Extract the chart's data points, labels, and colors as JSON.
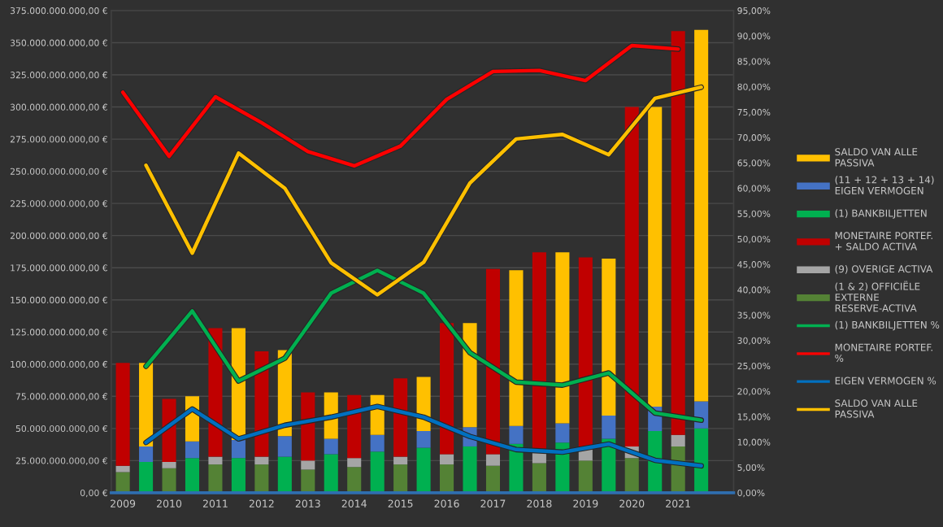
{
  "chart_data": {
    "type": "bar",
    "grid": "y",
    "legend": "right",
    "xlim": [
      2008.75,
      2022.2
    ],
    "xticks": [
      {
        "value": 2009,
        "label": "2009"
      },
      {
        "value": 2010,
        "label": "2010"
      },
      {
        "value": 2011,
        "label": "2011"
      },
      {
        "value": 2012,
        "label": "2012"
      },
      {
        "value": 2013,
        "label": "2013"
      },
      {
        "value": 2014,
        "label": "2014"
      },
      {
        "value": 2015,
        "label": "2015"
      },
      {
        "value": 2016,
        "label": "2016"
      },
      {
        "value": 2017,
        "label": "2017"
      },
      {
        "value": 2018,
        "label": "2018"
      },
      {
        "value": 2019,
        "label": "2019"
      },
      {
        "value": 2020,
        "label": "2020"
      },
      {
        "value": 2021,
        "label": "2021"
      }
    ],
    "ylim": [
      0,
      375000000000
    ],
    "yticks": [
      {
        "value": 0,
        "label": "0,00 €"
      },
      {
        "value": 25000000000,
        "label": "25.000.000.000,00 €"
      },
      {
        "value": 50000000000,
        "label": "50.000.000.000,00 €"
      },
      {
        "value": 75000000000,
        "label": "75.000.000.000,00 €"
      },
      {
        "value": 100000000000,
        "label": "100.000.000.000,00 €"
      },
      {
        "value": 125000000000,
        "label": "125.000.000.000,00 €"
      },
      {
        "value": 150000000000,
        "label": "150.000.000.000,00 €"
      },
      {
        "value": 175000000000,
        "label": "175.000.000.000,00 €"
      },
      {
        "value": 200000000000,
        "label": "200.000.000.000,00 €"
      },
      {
        "value": 225000000000,
        "label": "225.000.000.000,00 €"
      },
      {
        "value": 250000000000,
        "label": "250.000.000.000,00 €"
      },
      {
        "value": 275000000000,
        "label": "275.000.000.000,00 €"
      },
      {
        "value": 300000000000,
        "label": "300.000.000.000,00 €"
      },
      {
        "value": 325000000000,
        "label": "325.000.000.000,00 €"
      },
      {
        "value": 350000000000,
        "label": "350.000.000.000,00 €"
      },
      {
        "value": 375000000000,
        "label": "375.000.000.000,00 €"
      }
    ],
    "y2lim": [
      0,
      95
    ],
    "y2ticks": [
      {
        "value": 0,
        "label": "0,00%"
      },
      {
        "value": 5,
        "label": "5,00%"
      },
      {
        "value": 10,
        "label": "10,00%"
      },
      {
        "value": 15,
        "label": "15,00%"
      },
      {
        "value": 20,
        "label": "20,00%"
      },
      {
        "value": 25,
        "label": "25,00%"
      },
      {
        "value": 30,
        "label": "30,00%"
      },
      {
        "value": 35,
        "label": "35,00%"
      },
      {
        "value": 40,
        "label": "40,00%"
      },
      {
        "value": 45,
        "label": "45,00%"
      },
      {
        "value": 50,
        "label": "50,00%"
      },
      {
        "value": 55,
        "label": "55,00%"
      },
      {
        "value": 60,
        "label": "60,00%"
      },
      {
        "value": 65,
        "label": "65,00%"
      },
      {
        "value": 70,
        "label": "70,00%"
      },
      {
        "value": 75,
        "label": "75,00%"
      },
      {
        "value": 80,
        "label": "80,00%"
      },
      {
        "value": 85,
        "label": "85,00%"
      },
      {
        "value": 90,
        "label": "90,00%"
      },
      {
        "value": 95,
        "label": "95,00%"
      }
    ],
    "series": [
      {
        "name": "(1 & 2) OFFICIËLE EXTERNE RESERVE-ACTIVA",
        "color": "#548235",
        "x": [
          2009,
          2010,
          2011,
          2012,
          2013,
          2014,
          2015,
          2016,
          2017,
          2018,
          2019,
          2020,
          2021
        ],
        "base": [
          0,
          0,
          0,
          0,
          0,
          0,
          0,
          0,
          0,
          0,
          0,
          0,
          0
        ],
        "values": [
          16000000000,
          19000000000,
          22000000000,
          22000000000,
          18000000000,
          20000000000,
          22000000000,
          22000000000,
          21000000000,
          23000000000,
          25000000000,
          27000000000,
          36000000000
        ]
      },
      {
        "name": "(9) OVERIGE ACTIVA",
        "color": "#a5a5a5",
        "x": [
          2009,
          2010,
          2011,
          2012,
          2013,
          2014,
          2015,
          2016,
          2017,
          2018,
          2019,
          2020,
          2021
        ],
        "base": [
          16000000000,
          19000000000,
          22000000000,
          22000000000,
          18000000000,
          20000000000,
          22000000000,
          22000000000,
          21000000000,
          23000000000,
          25000000000,
          27000000000,
          36000000000
        ],
        "values": [
          5000000000,
          5000000000,
          6000000000,
          6000000000,
          7000000000,
          7000000000,
          6000000000,
          8000000000,
          9000000000,
          8000000000,
          9000000000,
          9000000000,
          9000000000
        ]
      },
      {
        "name": "MONETAIRE PORTEF. + SALDO ACTIVA",
        "color": "#c00000",
        "x": [
          2009,
          2010,
          2011,
          2012,
          2013,
          2014,
          2015,
          2016,
          2017,
          2018,
          2019,
          2020,
          2021
        ],
        "base": [
          21000000000,
          24000000000,
          28000000000,
          28000000000,
          25000000000,
          27000000000,
          28000000000,
          30000000000,
          30000000000,
          31000000000,
          34000000000,
          36000000000,
          45000000000
        ],
        "values": [
          80000000000,
          49000000000,
          100000000000,
          82000000000,
          53000000000,
          49000000000,
          61000000000,
          102000000000,
          144000000000,
          156000000000,
          149000000000,
          264000000000,
          314000000000
        ]
      },
      {
        "name": "(1) BANKBILJETTEN",
        "color": "#00b050",
        "x": [
          2009.5,
          2010.5,
          2011.5,
          2012.5,
          2013.5,
          2014.5,
          2015.5,
          2016.5,
          2017.5,
          2018.5,
          2019.5,
          2020.5,
          2021.5
        ],
        "base": [
          0,
          0,
          0,
          0,
          0,
          0,
          0,
          0,
          0,
          0,
          0,
          0,
          0
        ],
        "values": [
          24000000000,
          27000000000,
          27000000000,
          28000000000,
          30000000000,
          32000000000,
          35000000000,
          36000000000,
          38000000000,
          39000000000,
          42000000000,
          48000000000,
          50000000000
        ]
      },
      {
        "name": "(11 + 12 + 13 + 14) EIGEN VERMOGEN",
        "color": "#4472c4",
        "x": [
          2009.5,
          2010.5,
          2011.5,
          2012.5,
          2013.5,
          2014.5,
          2015.5,
          2016.5,
          2017.5,
          2018.5,
          2019.5,
          2020.5,
          2021.5
        ],
        "base": [
          24000000000,
          27000000000,
          27000000000,
          28000000000,
          30000000000,
          32000000000,
          35000000000,
          36000000000,
          38000000000,
          39000000000,
          42000000000,
          48000000000,
          50000000000
        ],
        "values": [
          12000000000,
          13000000000,
          14000000000,
          16000000000,
          12000000000,
          13000000000,
          13000000000,
          15000000000,
          14000000000,
          15000000000,
          18000000000,
          19000000000,
          21000000000
        ]
      },
      {
        "name": "SALDO VAN ALLE PASSIVA",
        "color": "#ffc000",
        "x": [
          2009.5,
          2010.5,
          2011.5,
          2012.5,
          2013.5,
          2014.5,
          2015.5,
          2016.5,
          2017.5,
          2018.5,
          2019.5,
          2020.5,
          2021.5
        ],
        "base": [
          36000000000,
          40000000000,
          41000000000,
          44000000000,
          42000000000,
          45000000000,
          48000000000,
          51000000000,
          52000000000,
          54000000000,
          60000000000,
          67000000000,
          71000000000
        ],
        "values": [
          65000000000,
          35000000000,
          87000000000,
          67000000000,
          36000000000,
          31000000000,
          42000000000,
          81000000000,
          121000000000,
          133000000000,
          122000000000,
          233000000000,
          289000000000
        ]
      },
      {
        "name": "(1) BANKBILJETTEN %",
        "type": "line",
        "axis": "y2",
        "color": "#00b050",
        "x": [
          2009.5,
          2010.5,
          2011.5,
          2012.5,
          2013.5,
          2014.5,
          2015.5,
          2016.5,
          2017.5,
          2018.5,
          2019.5,
          2020.5,
          2021.5
        ],
        "values": [
          24.9,
          35.8,
          22,
          26.5,
          39.3,
          43.8,
          39.3,
          27.6,
          21.8,
          21.2,
          23.6,
          15.7,
          14.3
        ]
      },
      {
        "name": "MONETAIRE PORTEF. %",
        "type": "line",
        "axis": "y2",
        "color": "#ff0000",
        "x": [
          2009,
          2010,
          2011,
          2012,
          2013,
          2014,
          2015,
          2016,
          2017,
          2018,
          2019,
          2020,
          2021
        ],
        "values": [
          78.9,
          66.3,
          78,
          72.9,
          67.2,
          64.4,
          68.3,
          77.5,
          83,
          83.2,
          81.2,
          88.1,
          87.4
        ]
      },
      {
        "name": "EIGEN VERMOGEN %",
        "type": "line",
        "axis": "y2",
        "color": "#0070c0",
        "x": [
          2009.5,
          2010.5,
          2011.5,
          2012.5,
          2013.5,
          2014.5,
          2015.5,
          2016.5,
          2017.5,
          2018.5,
          2019.5,
          2020.5,
          2021.5
        ],
        "values": [
          9.9,
          16.5,
          10.6,
          13.3,
          14.9,
          17,
          14.9,
          11.1,
          8.5,
          8,
          9.6,
          6.4,
          5.3
        ]
      },
      {
        "name": "SALDO VAN ALLE PASSIVA",
        "type": "line",
        "axis": "y2",
        "color": "#ffc000",
        "x": [
          2009.5,
          2010.5,
          2011.5,
          2012.5,
          2013.5,
          2014.5,
          2015.5,
          2016.5,
          2017.5,
          2018.5,
          2019.5,
          2020.5,
          2021.5
        ],
        "values": [
          64.5,
          47.2,
          66.9,
          60,
          45.3,
          39,
          45.4,
          61,
          69.7,
          70.6,
          66.6,
          77.7,
          79.9
        ]
      }
    ]
  }
}
